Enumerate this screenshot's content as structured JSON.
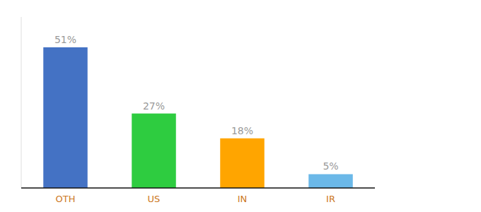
{
  "chart_data": {
    "type": "bar",
    "categories": [
      "OTH",
      "US",
      "IN",
      "IR"
    ],
    "values": [
      51,
      27,
      18,
      5
    ],
    "value_labels": [
      "51%",
      "27%",
      "18%",
      "5%"
    ],
    "colors": [
      "#4472C4",
      "#2ECC40",
      "#FFA500",
      "#6BB8E8"
    ],
    "ylim": [
      0,
      62
    ],
    "data_labels": true,
    "tick_labels": "x",
    "grid": false
  }
}
